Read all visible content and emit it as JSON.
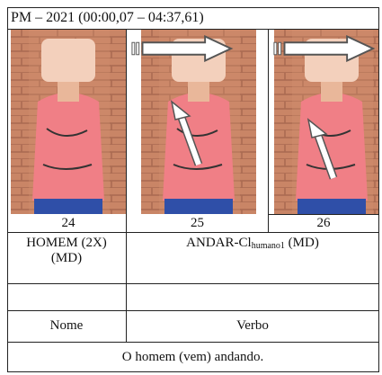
{
  "header": {
    "title": "PM – 2021  (00:00,07 – 04:37,61)"
  },
  "frames": [
    {
      "number": "24"
    },
    {
      "number": "25"
    },
    {
      "number": "26"
    }
  ],
  "gloss": {
    "left": [
      "HOMEM (2X)",
      "(MD)"
    ],
    "right": {
      "base": "ANDAR-Cl",
      "subscript": "humano1",
      "suffix": " (MD)"
    }
  },
  "classes": {
    "left": "Nome",
    "right": "Verbo"
  },
  "translation": "O homem (vem) andando."
}
